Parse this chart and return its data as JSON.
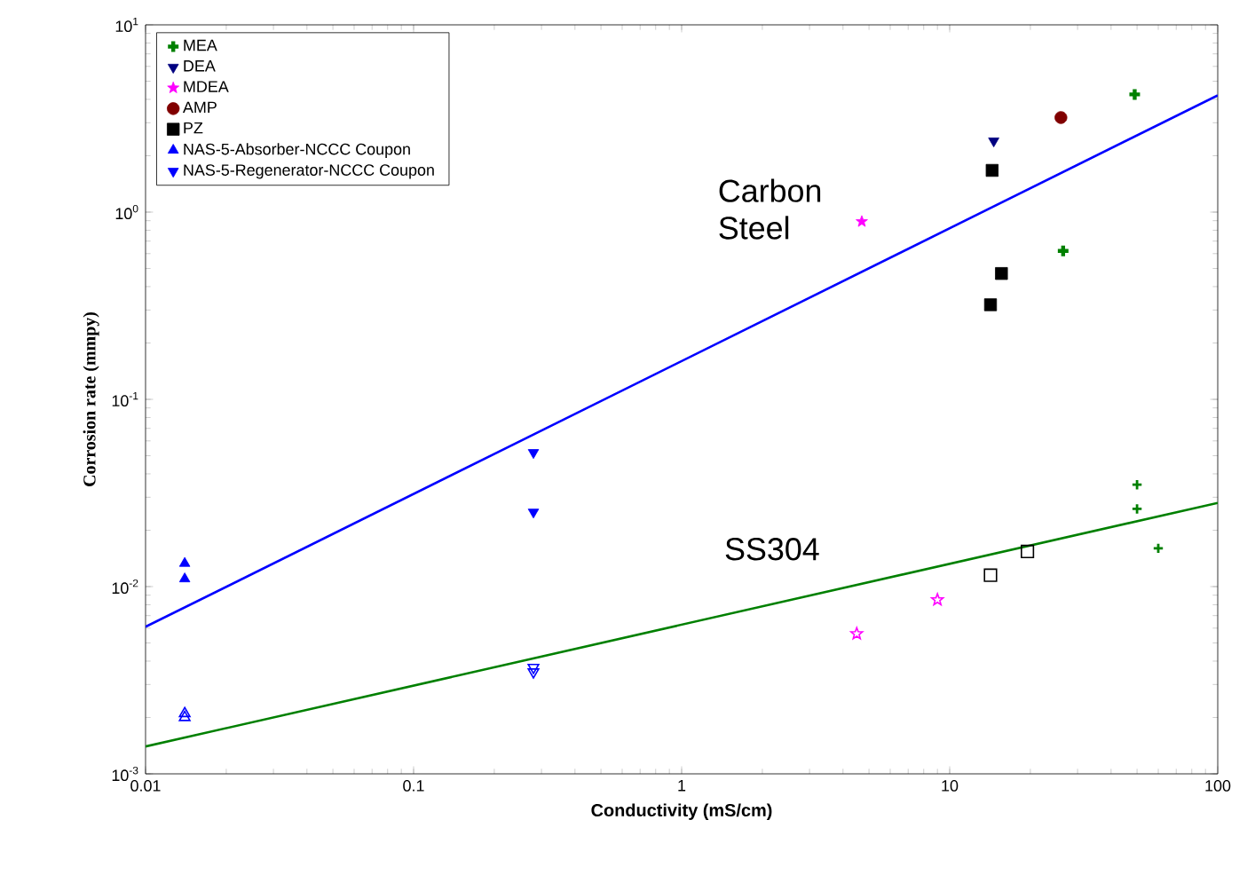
{
  "chart_data": {
    "type": "scatter",
    "xlabel": "Conductivity (mS/cm)",
    "ylabel": "Corrosion rate (mmpy)",
    "log": "xy",
    "grid": false,
    "legend": "top left",
    "xlim": [
      0.01,
      100
    ],
    "ylim": [
      0.001,
      10
    ],
    "xticks": [
      0.01,
      0.1,
      1,
      10,
      100
    ],
    "yticks": [
      {
        "value": 0.001,
        "label": "10$^{-3}$"
      },
      {
        "value": 0.01,
        "label": "10$^{-2}$"
      },
      {
        "value": 0.1,
        "label": "10$^{-1}$"
      },
      {
        "value": 1,
        "label": "10$^{0}$"
      },
      {
        "value": 10,
        "label": "10$^{1}$"
      }
    ],
    "series": [
      {
        "name": "MEA",
        "color": "#008000",
        "marker": "cross",
        "x": [
          49,
          26.5
        ],
        "values": [
          4.25,
          0.62
        ]
      },
      {
        "name": "DEA",
        "color": "#000080",
        "marker": "triangle down",
        "x": [
          14.6
        ],
        "values": [
          2.4
        ]
      },
      {
        "name": "MDEA",
        "color": "#ff00ff",
        "marker": "star",
        "x": [
          4.7
        ],
        "values": [
          0.89
        ]
      },
      {
        "name": "AMP",
        "color": "#800000",
        "marker": "circle",
        "x": [
          26
        ],
        "values": [
          3.2
        ]
      },
      {
        "name": "PZ",
        "color": "#000000",
        "marker": "square",
        "x": [
          14.4,
          15.6,
          14.2
        ],
        "values": [
          1.67,
          0.47,
          0.32
        ]
      },
      {
        "name": "NAS-5-Absorber-NCCC Coupon",
        "color": "#0000ff",
        "marker": "triangle",
        "x": [
          0.014,
          0.014
        ],
        "values": [
          0.0133,
          0.011
        ]
      },
      {
        "name": "NAS-5-Regenerator-NCCC Coupon",
        "color": "#0000ff",
        "marker": "triangle down",
        "x": [
          0.28,
          0.28
        ],
        "values": [
          0.052,
          0.025
        ]
      },
      {
        "color": "#008000",
        "marker": "cross",
        "x": [
          50,
          50,
          60
        ],
        "values": [
          0.035,
          0.026,
          0.016
        ]
      },
      {
        "color": "#ff00ff",
        "marker": "star",
        "x": [
          4.5,
          9
        ],
        "values": [
          0.0056,
          0.0085
        ]
      },
      {
        "color": "#000000",
        "marker": "square",
        "x": [
          14.2,
          19.5
        ],
        "values": [
          0.0115,
          0.0154
        ]
      },
      {
        "color": "#0000ff",
        "marker": "triangle",
        "x": [
          0.014,
          0.014
        ],
        "values": [
          0.0021,
          0.002
        ]
      },
      {
        "color": "#0000ff",
        "marker": "triangle down",
        "x": [
          0.28,
          0.28
        ],
        "values": [
          0.0037,
          0.0035
        ]
      },
      {
        "type": "line",
        "color": "#0000ff",
        "x": [
          0.01,
          100
        ],
        "values": [
          0.0061,
          4.2
        ]
      },
      {
        "type": "line",
        "color": "#008000",
        "x": [
          0.01,
          100
        ],
        "values": [
          0.0014,
          0.028
        ]
      }
    ],
    "annotations": [
      "Carbon Steel",
      "SS304"
    ]
  }
}
